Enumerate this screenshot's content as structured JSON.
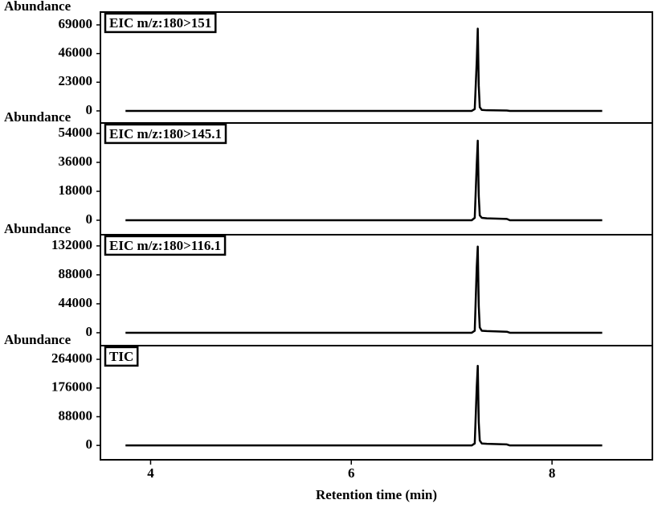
{
  "chart_data": [
    {
      "type": "line",
      "ylabel": "Abundance",
      "x": [
        3.75,
        7.2,
        7.23,
        7.25,
        7.26,
        7.27,
        7.28,
        7.3,
        7.35,
        7.55,
        7.58,
        8.5
      ],
      "series": [
        {
          "name": "EIC m/z:180>151",
          "color": "#000000",
          "values": [
            0,
            0,
            1500,
            40000,
            66000,
            20000,
            3000,
            800,
            500,
            300,
            0,
            0
          ]
        }
      ],
      "xlim": [
        3.5,
        9.0
      ],
      "ylim": [
        -9700,
        79300
      ],
      "yticks": [
        0,
        23000,
        46000,
        69000
      ]
    },
    {
      "type": "line",
      "ylabel": "Abundance",
      "x": [
        3.75,
        7.2,
        7.23,
        7.25,
        7.26,
        7.27,
        7.28,
        7.3,
        7.35,
        7.55,
        7.58,
        8.5
      ],
      "series": [
        {
          "name": "EIC m/z:180>145.1",
          "color": "#000000",
          "values": [
            0,
            0,
            1500,
            35000,
            49500,
            15000,
            3000,
            1500,
            1200,
            800,
            0,
            0
          ]
        }
      ],
      "xlim": [
        3.5,
        9.0
      ],
      "ylim": [
        -9000,
        60500
      ],
      "yticks": [
        0,
        18000,
        36000,
        54000
      ]
    },
    {
      "type": "line",
      "ylabel": "Abundance",
      "x": [
        3.75,
        7.2,
        7.23,
        7.25,
        7.26,
        7.27,
        7.28,
        7.3,
        7.35,
        7.55,
        7.58,
        8.5
      ],
      "series": [
        {
          "name": "EIC m/z:180>116.1",
          "color": "#000000",
          "values": [
            0,
            0,
            3000,
            100000,
            131000,
            40000,
            8000,
            3000,
            2500,
            1500,
            0,
            0
          ]
        }
      ],
      "xlim": [
        3.5,
        9.0
      ],
      "ylim": [
        -19600,
        149000
      ],
      "yticks": [
        0,
        44000,
        88000,
        132000
      ]
    },
    {
      "type": "line",
      "ylabel": "Abundance",
      "xlabel": "Retention time (min)",
      "x": [
        3.75,
        7.2,
        7.23,
        7.25,
        7.26,
        7.27,
        7.28,
        7.3,
        7.35,
        7.55,
        7.58,
        8.5
      ],
      "series": [
        {
          "name": "TIC",
          "color": "#000000",
          "values": [
            0,
            0,
            6000,
            180000,
            244000,
            70000,
            15000,
            6000,
            5000,
            3000,
            0,
            0
          ]
        }
      ],
      "xlim": [
        3.5,
        9.0
      ],
      "ylim": [
        -44000,
        306000
      ],
      "yticks": [
        0,
        88000,
        176000,
        264000
      ],
      "xticks": [
        4,
        6,
        8
      ]
    }
  ]
}
